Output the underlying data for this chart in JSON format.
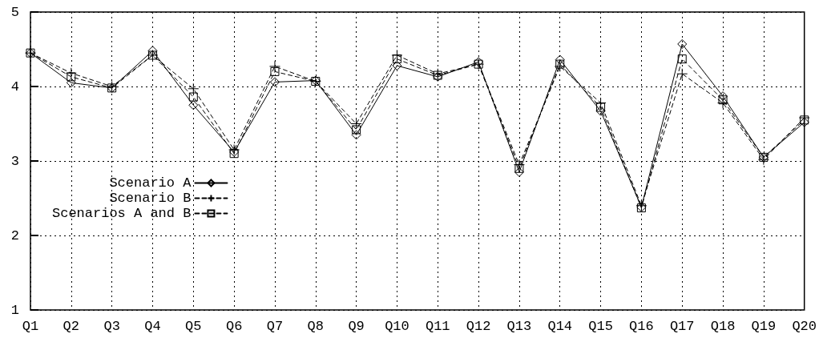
{
  "chart_data": {
    "type": "line",
    "categories": [
      "Q1",
      "Q2",
      "Q3",
      "Q4",
      "Q5",
      "Q6",
      "Q7",
      "Q8",
      "Q9",
      "Q10",
      "Q11",
      "Q12",
      "Q13",
      "Q14",
      "Q15",
      "Q16",
      "Q17",
      "Q18",
      "Q19",
      "Q20"
    ],
    "series": [
      {
        "name": "Scenario A",
        "color": "#000000",
        "marker": "diamond",
        "line_style": "solid",
        "values": [
          4.45,
          4.05,
          3.98,
          4.48,
          3.75,
          3.12,
          4.06,
          4.08,
          3.35,
          4.28,
          4.13,
          4.33,
          2.85,
          4.36,
          3.67,
          2.38,
          4.57,
          3.87,
          3.05,
          3.52
        ]
      },
      {
        "name": "Scenario B",
        "color": "#000000",
        "marker": "cross",
        "line_style": "dashed",
        "values": [
          4.45,
          4.18,
          4.0,
          4.42,
          3.97,
          3.15,
          4.27,
          4.07,
          3.5,
          4.42,
          4.17,
          4.3,
          2.95,
          4.27,
          3.78,
          2.4,
          4.17,
          3.78,
          3.02,
          3.58
        ]
      },
      {
        "name": "Scenarios A and B",
        "color": "#000000",
        "marker": "square",
        "line_style": "dashed",
        "values": [
          4.45,
          4.13,
          3.98,
          4.42,
          3.86,
          3.1,
          4.2,
          4.07,
          3.42,
          4.37,
          4.15,
          4.3,
          2.9,
          4.3,
          3.72,
          2.37,
          4.37,
          3.82,
          3.05,
          3.55
        ]
      }
    ],
    "ylim": [
      1,
      5
    ],
    "yticks": [
      1,
      2,
      3,
      4,
      5
    ],
    "grid": true,
    "legend": "left"
  }
}
